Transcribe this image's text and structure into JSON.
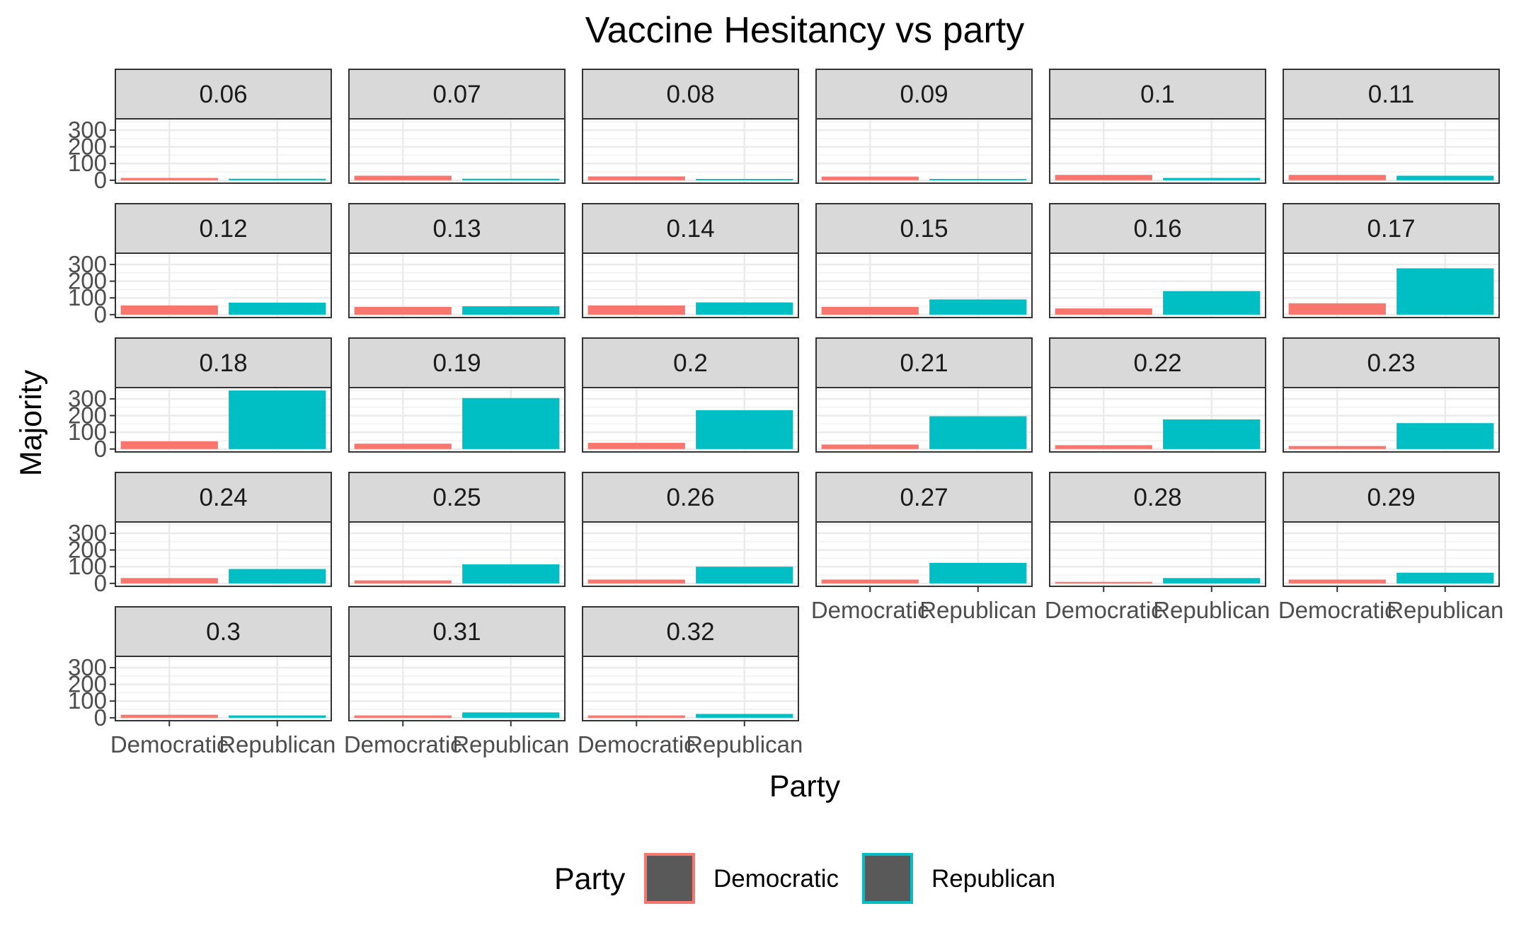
{
  "chart_data": {
    "type": "bar",
    "title": "Vaccine Hesitancy vs party",
    "xlabel": "Party",
    "ylabel": "Majority",
    "categories": [
      "Democratic",
      "Republican"
    ],
    "y_ticks": [
      "0",
      "100",
      "200",
      "300"
    ],
    "ylim": [
      0,
      350
    ],
    "grid": true,
    "facet_ncol": 6,
    "legend": {
      "title": "Party",
      "position": "bottom",
      "entries": [
        {
          "label": "Democratic",
          "color": "#f8766d"
        },
        {
          "label": "Republican",
          "color": "#00bfc4"
        }
      ]
    },
    "colors": {
      "Democratic": "#f8766d",
      "Republican": "#00bfc4",
      "strip_fill": "#d9d9d9",
      "panel_border": "#333333",
      "grid": "#ebebeb"
    },
    "facets": [
      {
        "label": "0.06",
        "values": [
          14,
          9
        ]
      },
      {
        "label": "0.07",
        "values": [
          27,
          9
        ]
      },
      {
        "label": "0.08",
        "values": [
          23,
          8
        ]
      },
      {
        "label": "0.09",
        "values": [
          22,
          8
        ]
      },
      {
        "label": "0.1",
        "values": [
          32,
          14
        ]
      },
      {
        "label": "0.11",
        "values": [
          32,
          27
        ]
      },
      {
        "label": "0.12",
        "values": [
          55,
          72
        ]
      },
      {
        "label": "0.13",
        "values": [
          46,
          50
        ]
      },
      {
        "label": "0.14",
        "values": [
          55,
          73
        ]
      },
      {
        "label": "0.15",
        "values": [
          46,
          91
        ]
      },
      {
        "label": "0.16",
        "values": [
          37,
          141
        ]
      },
      {
        "label": "0.17",
        "values": [
          68,
          277
        ]
      },
      {
        "label": "0.18",
        "values": [
          46,
          350
        ]
      },
      {
        "label": "0.19",
        "values": [
          32,
          305
        ]
      },
      {
        "label": "0.2",
        "values": [
          37,
          232
        ]
      },
      {
        "label": "0.21",
        "values": [
          27,
          196
        ]
      },
      {
        "label": "0.22",
        "values": [
          23,
          177
        ]
      },
      {
        "label": "0.23",
        "values": [
          18,
          155
        ]
      },
      {
        "label": "0.24",
        "values": [
          32,
          86
        ]
      },
      {
        "label": "0.25",
        "values": [
          18,
          114
        ]
      },
      {
        "label": "0.26",
        "values": [
          23,
          100
        ]
      },
      {
        "label": "0.27",
        "values": [
          23,
          123
        ]
      },
      {
        "label": "0.28",
        "values": [
          9,
          32
        ]
      },
      {
        "label": "0.29",
        "values": [
          23,
          64
        ]
      },
      {
        "label": "0.3",
        "values": [
          18,
          14
        ]
      },
      {
        "label": "0.31",
        "values": [
          14,
          32
        ]
      },
      {
        "label": "0.32",
        "values": [
          14,
          23
        ]
      }
    ]
  }
}
